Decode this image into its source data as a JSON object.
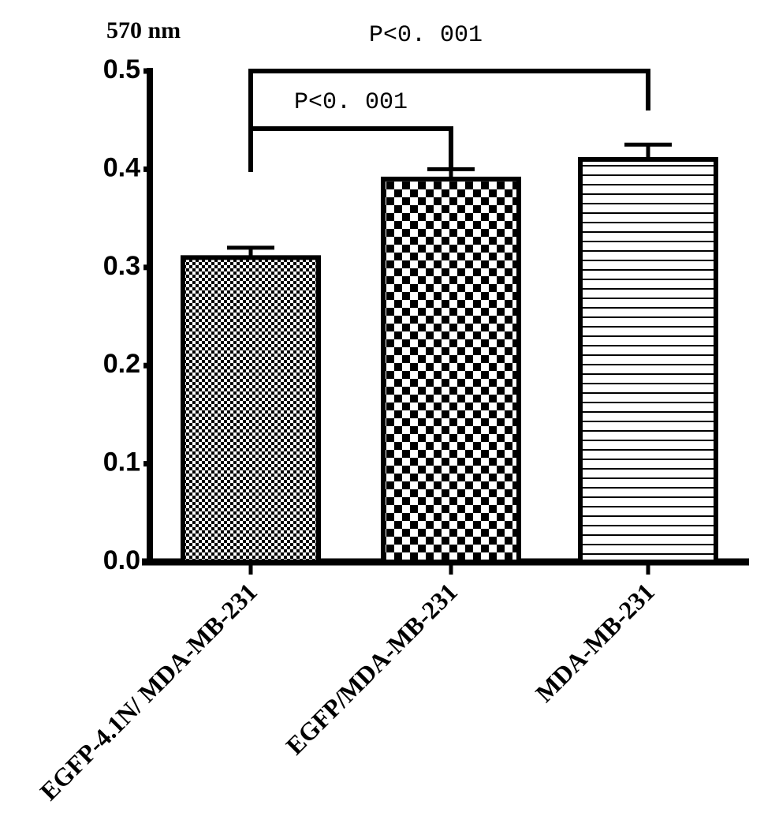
{
  "chart_data": {
    "type": "bar",
    "ylabel": "570 nm",
    "categories": [
      "EGFP-4.1N/ MDA-MB-231",
      "EGFP/MDA-MB-231",
      "MDA-MB-231"
    ],
    "values": [
      0.31,
      0.39,
      0.41
    ],
    "errors": [
      0.01,
      0.01,
      0.015
    ],
    "color": "#000000",
    "ylim": [
      0,
      0.5
    ],
    "yticks": [
      {
        "value": 0,
        "label": "0.0"
      },
      0.1,
      0.2,
      0.3,
      0.4,
      0.5
    ],
    "annotations": [
      {
        "text": "P<0. 001",
        "from": 0,
        "to": 1
      },
      {
        "text": "P<0. 001",
        "from": 0,
        "to": 2
      }
    ]
  }
}
